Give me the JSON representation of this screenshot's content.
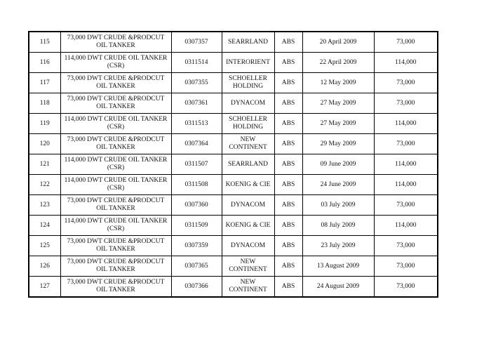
{
  "document": {
    "background_color": "#ffffff",
    "text_color": "#111111",
    "border_color": "#000000"
  },
  "table": {
    "rows": [
      {
        "no": "115",
        "description": "73,000 DWT CRUDE &PRODCUT OIL TANKER",
        "hull_no": "0307357",
        "owner": "SEARRLAND",
        "class": "ABS",
        "delivery_date": "20 April 2009",
        "dwt": "73,000"
      },
      {
        "no": "116",
        "description": "114,000 DWT CRUDE OIL TANKER (CSR)",
        "hull_no": "0311514",
        "owner": "INTERORIENT",
        "class": "ABS",
        "delivery_date": "22 April 2009",
        "dwt": "114,000"
      },
      {
        "no": "117",
        "description": "73,000 DWT CRUDE &PRODCUT OIL TANKER",
        "hull_no": "0307355",
        "owner": "SCHOELLER HOLDING",
        "class": "ABS",
        "delivery_date": "12 May 2009",
        "dwt": "73,000"
      },
      {
        "no": "118",
        "description": "73,000 DWT CRUDE &PRODCUT OIL TANKER",
        "hull_no": "0307361",
        "owner": "DYNACOM",
        "class": "ABS",
        "delivery_date": "27 May 2009",
        "dwt": "73,000"
      },
      {
        "no": "119",
        "description": "114,000 DWT CRUDE OIL TANKER (CSR)",
        "hull_no": "0311513",
        "owner": "SCHOELLER HOLDING",
        "class": "ABS",
        "delivery_date": "27 May 2009",
        "dwt": "114,000"
      },
      {
        "no": "120",
        "description": "73,000 DWT CRUDE &PRODCUT OIL TANKER",
        "hull_no": "0307364",
        "owner": "NEW CONTINENT",
        "class": "ABS",
        "delivery_date": "29 May 2009",
        "dwt": "73,000"
      },
      {
        "no": "121",
        "description": "114,000 DWT CRUDE OIL TANKER (CSR)",
        "hull_no": "0311507",
        "owner": "SEARRLAND",
        "class": "ABS",
        "delivery_date": "09 June 2009",
        "dwt": "114,000"
      },
      {
        "no": "122",
        "description": "114,000 DWT CRUDE OIL TANKER (CSR)",
        "hull_no": "0311508",
        "owner": "KOENIG & CIE",
        "class": "ABS",
        "delivery_date": "24 June 2009",
        "dwt": "114,000"
      },
      {
        "no": "123",
        "description": "73,000 DWT CRUDE &PRODCUT OIL TANKER",
        "hull_no": "0307360",
        "owner": "DYNACOM",
        "class": "ABS",
        "delivery_date": "03 July 2009",
        "dwt": "73,000"
      },
      {
        "no": "124",
        "description": "114,000 DWT CRUDE OIL TANKER (CSR)",
        "hull_no": "0311509",
        "owner": "KOENIG & CIE",
        "class": "ABS",
        "delivery_date": "08 July 2009",
        "dwt": "114,000"
      },
      {
        "no": "125",
        "description": "73,000 DWT CRUDE &PRODCUT OIL TANKER",
        "hull_no": "0307359",
        "owner": "DYNACOM",
        "class": "ABS",
        "delivery_date": "23 July 2009",
        "dwt": "73,000"
      },
      {
        "no": "126",
        "description": "73,000 DWT CRUDE &PRODCUT OIL TANKER",
        "hull_no": "0307365",
        "owner": "NEW CONTINENT",
        "class": "ABS",
        "delivery_date": "13 August 2009",
        "dwt": "73,000"
      },
      {
        "no": "127",
        "description": "73,000 DWT CRUDE &PRODCUT OIL TANKER",
        "hull_no": "0307366",
        "owner": "NEW CONTINENT",
        "class": "ABS",
        "delivery_date": "24 August 2009",
        "dwt": "73,000"
      }
    ]
  }
}
